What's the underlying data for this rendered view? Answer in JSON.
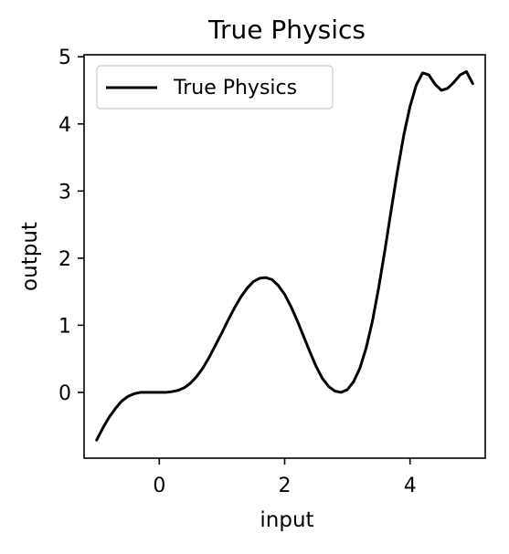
{
  "chart_data": {
    "type": "line",
    "title": "True Physics",
    "xlabel": "input",
    "ylabel": "output",
    "xlim": [
      -1.2,
      5.2
    ],
    "ylim": [
      -0.98,
      5.03
    ],
    "x_ticks": [
      0,
      2,
      4
    ],
    "y_ticks": [
      0,
      1,
      2,
      3,
      4,
      5
    ],
    "x_tick_labels": [
      "0",
      "2",
      "4"
    ],
    "y_tick_labels": [
      "0",
      "1",
      "2",
      "3",
      "4",
      "5"
    ],
    "grid": false,
    "legend": {
      "location": "upper left",
      "entries": [
        "True Physics"
      ]
    },
    "series": [
      {
        "name": "True Physics",
        "color": "#000000",
        "x": [
          -1.0,
          -0.9,
          -0.8,
          -0.7,
          -0.6,
          -0.5,
          -0.4,
          -0.3,
          -0.2,
          -0.1,
          0.0,
          0.1,
          0.2,
          0.3,
          0.4,
          0.5,
          0.6,
          0.7,
          0.8,
          0.9,
          1.0,
          1.1,
          1.2,
          1.3,
          1.4,
          1.5,
          1.6,
          1.7,
          1.8,
          1.9,
          2.0,
          2.1,
          2.2,
          2.3,
          2.4,
          2.5,
          2.6,
          2.7,
          2.8,
          2.9,
          3.0,
          3.1,
          3.2,
          3.3,
          3.4,
          3.5,
          3.6,
          3.7,
          3.8,
          3.9,
          4.0,
          4.1,
          4.2,
          4.3,
          4.4,
          4.5,
          4.6,
          4.7,
          4.8,
          4.9,
          5.0
        ],
        "y": [
          -0.71,
          -0.53,
          -0.37,
          -0.24,
          -0.13,
          -0.06,
          -0.02,
          0.0,
          0.0,
          0.0,
          0.0,
          0.0,
          0.01,
          0.03,
          0.07,
          0.14,
          0.24,
          0.37,
          0.53,
          0.71,
          0.89,
          1.08,
          1.26,
          1.42,
          1.55,
          1.65,
          1.7,
          1.71,
          1.68,
          1.59,
          1.46,
          1.28,
          1.07,
          0.84,
          0.61,
          0.39,
          0.21,
          0.09,
          0.02,
          0.0,
          0.04,
          0.16,
          0.36,
          0.66,
          1.06,
          1.56,
          2.12,
          2.72,
          3.3,
          3.83,
          4.26,
          4.58,
          4.76,
          4.73,
          4.59,
          4.5,
          4.53,
          4.62,
          4.73,
          4.78,
          4.6
        ]
      }
    ]
  }
}
